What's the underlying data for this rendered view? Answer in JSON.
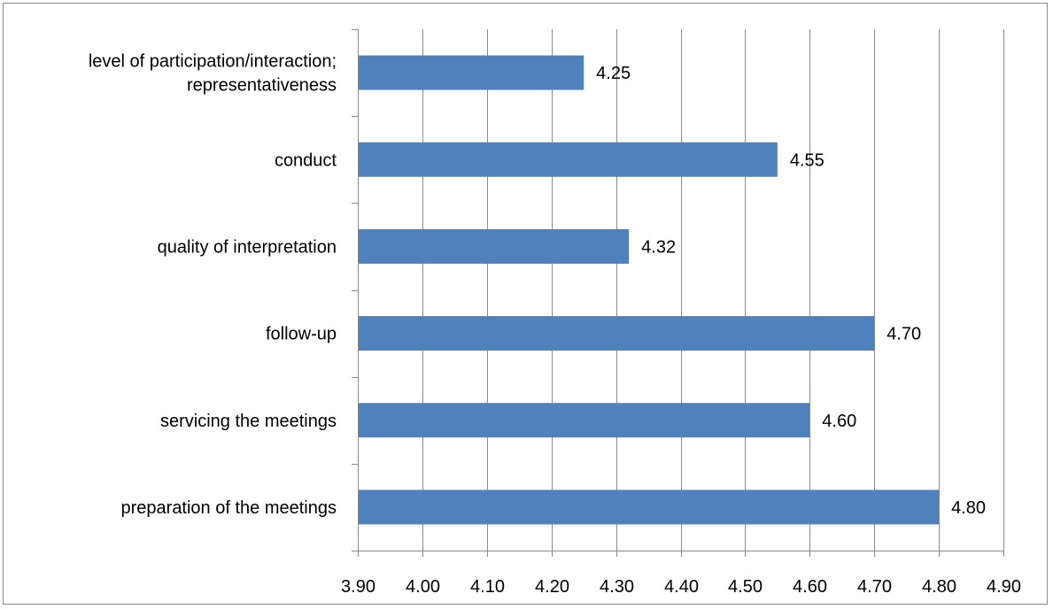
{
  "chart_data": {
    "type": "bar",
    "orientation": "horizontal",
    "categories": [
      [
        "level of participation/interaction;",
        "representativeness"
      ],
      [
        "conduct"
      ],
      [
        "quality of interpretation"
      ],
      [
        "follow-up"
      ],
      [
        "servicing the meetings"
      ],
      [
        "preparation of the meetings"
      ]
    ],
    "values": [
      4.25,
      4.55,
      4.32,
      4.7,
      4.6,
      4.8
    ],
    "data_labels": [
      "4.25",
      "4.55",
      "4.32",
      "4.70",
      "4.60",
      "4.80"
    ],
    "xlim": [
      3.9,
      4.9
    ],
    "x_ticks": [
      "3.90",
      "4.00",
      "4.10",
      "4.20",
      "4.30",
      "4.40",
      "4.50",
      "4.60",
      "4.70",
      "4.80",
      "4.90"
    ],
    "title": "",
    "xlabel": "",
    "ylabel": "",
    "grid": "vertical",
    "legend": "none",
    "bar_color": "#4f81bd",
    "grid_color": "#8c8c8c"
  }
}
